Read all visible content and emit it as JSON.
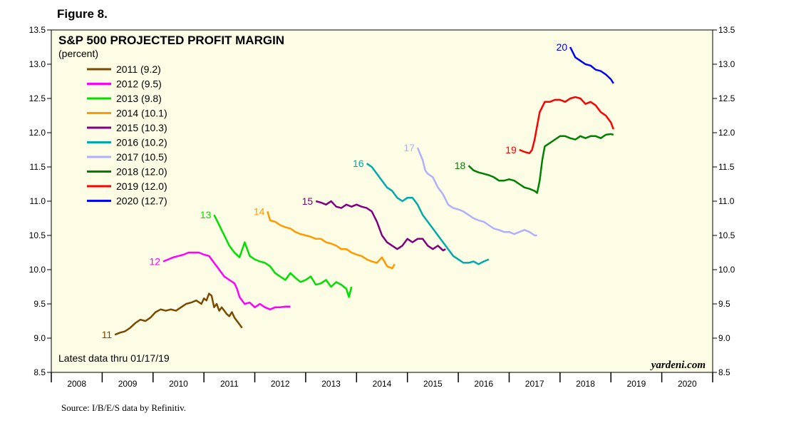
{
  "figure_label": "Figure 8.",
  "source": "Source: I/B/E/S data by Refinitiv.",
  "colors": {
    "background": "#fdfde6",
    "s2011": "#7a4a00",
    "s2012": "#ff00ff",
    "s2013": "#00e000",
    "s2014": "#ff9900",
    "s2015": "#800080",
    "s2016": "#00aaaa",
    "s2017": "#b0b0ff",
    "s2018": "#008000",
    "s2019": "#ff0000",
    "s2020": "#0000ff"
  },
  "chart_data": {
    "type": "line",
    "title": "S&P 500 PROJECTED PROFIT MARGIN",
    "subtitle": "(percent)",
    "note": "Latest data thru 01/17/19",
    "brand": "yardeni.com",
    "xlabel": "",
    "ylabel": "",
    "xlim": [
      2008,
      2021
    ],
    "ylim": [
      8.5,
      13.5
    ],
    "y_ticks": [
      8.5,
      9.0,
      9.5,
      10.0,
      10.5,
      11.0,
      11.5,
      12.0,
      12.5,
      13.0,
      13.5
    ],
    "y_tick_labels": [
      "8.5",
      "9.0",
      "9.5",
      "10.0",
      "10.5",
      "11.0",
      "11.5",
      "12.0",
      "12.5",
      "13.0",
      "13.5"
    ],
    "x_ticks": [
      2008,
      2009,
      2010,
      2011,
      2012,
      2013,
      2014,
      2015,
      2016,
      2017,
      2018,
      2019,
      2020,
      2021
    ],
    "x_tick_labels": [
      "2008",
      "2009",
      "2010",
      "2011",
      "2012",
      "2013",
      "2014",
      "2015",
      "2016",
      "2017",
      "2018",
      "2019",
      "2020"
    ],
    "grid": false,
    "legend_position": "top-left",
    "series": [
      {
        "name": "2011 (9.2)",
        "label": "11",
        "color_key": "s2011",
        "x": [
          2009.25,
          2009.35,
          2009.45,
          2009.55,
          2009.65,
          2009.75,
          2009.85,
          2009.95,
          2010.05,
          2010.15,
          2010.25,
          2010.35,
          2010.45,
          2010.55,
          2010.65,
          2010.75,
          2010.85,
          2010.95,
          2011.0,
          2011.05,
          2011.1,
          2011.15,
          2011.2,
          2011.25,
          2011.3,
          2011.35,
          2011.45,
          2011.5,
          2011.55,
          2011.6,
          2011.7,
          2011.75
        ],
        "y": [
          9.05,
          9.08,
          9.1,
          9.15,
          9.22,
          9.27,
          9.25,
          9.3,
          9.38,
          9.42,
          9.4,
          9.42,
          9.4,
          9.45,
          9.5,
          9.52,
          9.55,
          9.5,
          9.58,
          9.55,
          9.65,
          9.62,
          9.45,
          9.5,
          9.4,
          9.45,
          9.35,
          9.32,
          9.38,
          9.3,
          9.2,
          9.15
        ]
      },
      {
        "name": "2012 (9.5)",
        "label": "12",
        "color_key": "s2012",
        "x": [
          2010.2,
          2010.3,
          2010.4,
          2010.5,
          2010.6,
          2010.7,
          2010.8,
          2010.9,
          2011.0,
          2011.1,
          2011.2,
          2011.3,
          2011.4,
          2011.5,
          2011.6,
          2011.65,
          2011.7,
          2011.75,
          2011.8,
          2011.9,
          2012.0,
          2012.1,
          2012.2,
          2012.3,
          2012.4,
          2012.5,
          2012.6,
          2012.7
        ],
        "y": [
          10.12,
          10.15,
          10.18,
          10.2,
          10.22,
          10.25,
          10.25,
          10.25,
          10.22,
          10.2,
          10.1,
          10.0,
          9.9,
          9.85,
          9.8,
          9.72,
          9.6,
          9.55,
          9.5,
          9.52,
          9.45,
          9.5,
          9.45,
          9.42,
          9.45,
          9.45,
          9.46,
          9.46
        ]
      },
      {
        "name": "2013 (9.8)",
        "label": "13",
        "color_key": "s2013",
        "x": [
          2011.2,
          2011.3,
          2011.4,
          2011.5,
          2011.55,
          2011.6,
          2011.7,
          2011.8,
          2011.9,
          2012.0,
          2012.1,
          2012.2,
          2012.3,
          2012.4,
          2012.5,
          2012.6,
          2012.7,
          2012.8,
          2012.9,
          2013.0,
          2013.1,
          2013.2,
          2013.3,
          2013.4,
          2013.5,
          2013.6,
          2013.7,
          2013.8,
          2013.85,
          2013.9
        ],
        "y": [
          10.8,
          10.65,
          10.5,
          10.35,
          10.3,
          10.25,
          10.18,
          10.4,
          10.2,
          10.15,
          10.12,
          10.1,
          10.05,
          9.95,
          9.9,
          9.85,
          9.95,
          9.88,
          9.82,
          9.85,
          9.9,
          9.78,
          9.8,
          9.85,
          9.75,
          9.82,
          9.78,
          9.72,
          9.6,
          9.75
        ]
      },
      {
        "name": "2014 (10.1)",
        "label": "14",
        "color_key": "s2014",
        "x": [
          2012.25,
          2012.3,
          2012.4,
          2012.5,
          2012.6,
          2012.7,
          2012.8,
          2012.9,
          2013.0,
          2013.1,
          2013.2,
          2013.3,
          2013.4,
          2013.5,
          2013.6,
          2013.7,
          2013.8,
          2013.9,
          2014.0,
          2014.1,
          2014.2,
          2014.3,
          2014.4,
          2014.5,
          2014.6,
          2014.7,
          2014.75
        ],
        "y": [
          10.85,
          10.72,
          10.7,
          10.65,
          10.62,
          10.6,
          10.55,
          10.52,
          10.5,
          10.48,
          10.45,
          10.45,
          10.4,
          10.38,
          10.35,
          10.3,
          10.3,
          10.25,
          10.22,
          10.2,
          10.15,
          10.12,
          10.1,
          10.18,
          10.05,
          10.02,
          10.08
        ]
      },
      {
        "name": "2015 (10.3)",
        "label": "15",
        "color_key": "s2015",
        "x": [
          2013.2,
          2013.3,
          2013.4,
          2013.5,
          2013.6,
          2013.7,
          2013.8,
          2013.9,
          2014.0,
          2014.1,
          2014.2,
          2014.3,
          2014.4,
          2014.5,
          2014.6,
          2014.7,
          2014.8,
          2014.9,
          2015.0,
          2015.1,
          2015.2,
          2015.3,
          2015.4,
          2015.5,
          2015.6,
          2015.7,
          2015.75
        ],
        "y": [
          11.0,
          10.98,
          10.95,
          11.0,
          10.92,
          10.9,
          10.95,
          10.92,
          10.95,
          10.92,
          10.9,
          10.85,
          10.7,
          10.5,
          10.4,
          10.35,
          10.3,
          10.35,
          10.45,
          10.4,
          10.45,
          10.45,
          10.35,
          10.3,
          10.35,
          10.28,
          10.3
        ]
      },
      {
        "name": "2016 (10.2)",
        "label": "16",
        "color_key": "s2016",
        "x": [
          2014.2,
          2014.3,
          2014.4,
          2014.5,
          2014.6,
          2014.7,
          2014.8,
          2014.9,
          2015.0,
          2015.1,
          2015.2,
          2015.3,
          2015.4,
          2015.5,
          2015.6,
          2015.7,
          2015.8,
          2015.9,
          2016.0,
          2016.1,
          2016.2,
          2016.3,
          2016.4,
          2016.5,
          2016.6
        ],
        "y": [
          11.55,
          11.5,
          11.4,
          11.3,
          11.2,
          11.15,
          11.05,
          11.0,
          11.05,
          11.05,
          10.95,
          10.8,
          10.7,
          10.6,
          10.5,
          10.4,
          10.3,
          10.2,
          10.15,
          10.1,
          10.1,
          10.12,
          10.08,
          10.12,
          10.15
        ]
      },
      {
        "name": "2017 (10.5)",
        "label": "17",
        "color_key": "s2017",
        "x": [
          2015.2,
          2015.3,
          2015.35,
          2015.4,
          2015.5,
          2015.6,
          2015.7,
          2015.8,
          2015.9,
          2016.0,
          2016.1,
          2016.2,
          2016.3,
          2016.4,
          2016.5,
          2016.6,
          2016.7,
          2016.8,
          2016.9,
          2017.0,
          2017.1,
          2017.2,
          2017.3,
          2017.4,
          2017.5,
          2017.55
        ],
        "y": [
          11.78,
          11.6,
          11.45,
          11.4,
          11.35,
          11.2,
          11.1,
          10.95,
          10.9,
          10.88,
          10.85,
          10.8,
          10.75,
          10.72,
          10.7,
          10.65,
          10.6,
          10.58,
          10.55,
          10.55,
          10.52,
          10.55,
          10.58,
          10.55,
          10.5,
          10.5
        ]
      },
      {
        "name": "2018 (12.0)",
        "label": "18",
        "color_key": "s2018",
        "x": [
          2016.2,
          2016.3,
          2016.4,
          2016.5,
          2016.6,
          2016.7,
          2016.8,
          2016.9,
          2017.0,
          2017.1,
          2017.2,
          2017.3,
          2017.4,
          2017.5,
          2017.55,
          2017.6,
          2017.65,
          2017.7,
          2017.8,
          2017.9,
          2018.0,
          2018.1,
          2018.2,
          2018.3,
          2018.4,
          2018.5,
          2018.6,
          2018.7,
          2018.8,
          2018.9,
          2019.0,
          2019.05
        ],
        "y": [
          11.52,
          11.45,
          11.42,
          11.4,
          11.38,
          11.35,
          11.3,
          11.3,
          11.32,
          11.3,
          11.25,
          11.2,
          11.18,
          11.15,
          11.12,
          11.3,
          11.6,
          11.8,
          11.85,
          11.9,
          11.95,
          11.95,
          11.92,
          11.9,
          11.95,
          11.92,
          11.95,
          11.95,
          11.92,
          11.97,
          11.98,
          11.97
        ]
      },
      {
        "name": "2019 (12.0)",
        "label": "19",
        "color_key": "s2019",
        "x": [
          2017.2,
          2017.3,
          2017.4,
          2017.45,
          2017.5,
          2017.55,
          2017.6,
          2017.7,
          2017.8,
          2017.9,
          2018.0,
          2018.1,
          2018.2,
          2018.3,
          2018.4,
          2018.5,
          2018.6,
          2018.7,
          2018.8,
          2018.9,
          2019.0,
          2019.05
        ],
        "y": [
          11.75,
          11.72,
          11.7,
          11.75,
          11.9,
          12.1,
          12.3,
          12.45,
          12.45,
          12.48,
          12.48,
          12.45,
          12.5,
          12.52,
          12.5,
          12.42,
          12.45,
          12.4,
          12.3,
          12.25,
          12.15,
          12.05
        ]
      },
      {
        "name": "2020 (12.7)",
        "label": "20",
        "color_key": "s2020",
        "x": [
          2018.2,
          2018.3,
          2018.4,
          2018.5,
          2018.6,
          2018.7,
          2018.8,
          2018.9,
          2019.0,
          2019.05
        ],
        "y": [
          13.25,
          13.1,
          13.05,
          13.0,
          12.98,
          12.92,
          12.9,
          12.85,
          12.78,
          12.72
        ]
      }
    ]
  }
}
